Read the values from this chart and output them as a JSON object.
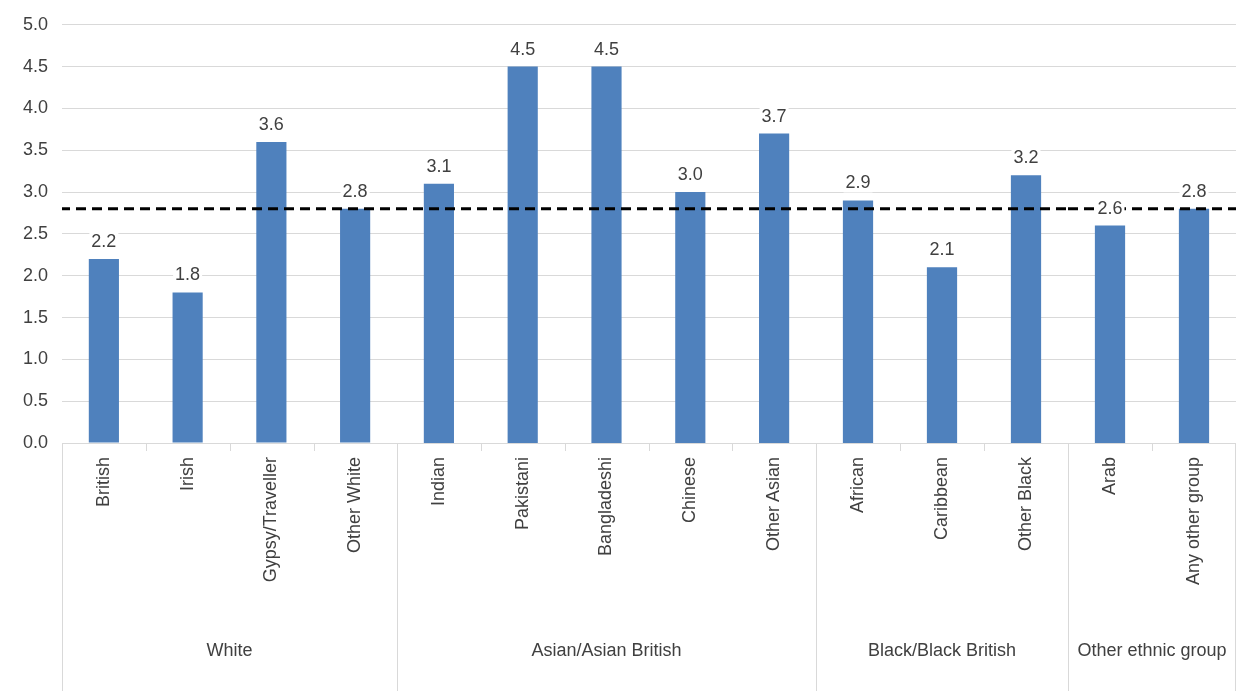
{
  "chart_data": [
    {
      "type": "bar",
      "xlabel": "White",
      "categories": [
        "British",
        "Irish",
        "Gypsy/Traveller",
        "Other White"
      ],
      "values": [
        2.2,
        1.8,
        3.6,
        2.8
      ],
      "value_labels": [
        "2.2",
        "1.8",
        "3.6",
        "2.8"
      ],
      "color": "#4f81bd",
      "ylim": [
        0,
        5
      ],
      "yticks": [
        {
          "value": 0,
          "label": "0.0"
        },
        {
          "value": 0.5,
          "label": "0.5"
        },
        {
          "value": 1,
          "label": "1.0"
        },
        {
          "value": 1.5,
          "label": "1.5"
        },
        {
          "value": 2,
          "label": "2.0"
        },
        {
          "value": 2.5,
          "label": "2.5"
        },
        {
          "value": 3,
          "label": "3.0"
        },
        {
          "value": 3.5,
          "label": "3.5"
        },
        {
          "value": 4,
          "label": "4.0"
        },
        {
          "value": 4.5,
          "label": "4.5"
        },
        {
          "value": 5,
          "label": "5.0"
        }
      ],
      "grid": "y",
      "ref_lines": [
        {
          "axis": "y",
          "value": 2.8,
          "color": "#000000",
          "line_style": "dashed"
        }
      ]
    },
    {
      "type": "bar",
      "xlabel": "Asian/Asian British",
      "categories": [
        "Indian",
        "Pakistani",
        "Bangladeshi",
        "Chinese",
        "Other Asian"
      ],
      "values": [
        3.1,
        4.5,
        4.5,
        3.0,
        3.7
      ],
      "value_labels": [
        "3.1",
        "4.5",
        "4.5",
        "3.0",
        "3.7"
      ],
      "color": "#4f81bd",
      "ylim": [
        0,
        5
      ],
      "yticks": [
        0,
        0.5,
        1,
        1.5,
        2,
        2.5,
        3,
        3.5,
        4,
        4.5,
        5
      ],
      "tick_labels": "x",
      "grid": "y",
      "ref_lines": [
        {
          "axis": "y",
          "value": 2.8,
          "color": "#000000",
          "line_style": "dashed"
        }
      ]
    },
    {
      "type": "bar",
      "xlabel": "Black/Black British",
      "categories": [
        "African",
        "Caribbean",
        "Other Black"
      ],
      "values": [
        2.9,
        2.1,
        3.2
      ],
      "value_labels": [
        "2.9",
        "2.1",
        "3.2"
      ],
      "color": "#4f81bd",
      "ylim": [
        0,
        5
      ],
      "yticks": [
        0,
        0.5,
        1,
        1.5,
        2,
        2.5,
        3,
        3.5,
        4,
        4.5,
        5
      ],
      "tick_labels": "x",
      "grid": "y",
      "ref_lines": [
        {
          "axis": "y",
          "value": 2.8,
          "color": "#000000",
          "line_style": "dashed"
        }
      ]
    },
    {
      "type": "bar",
      "xlabel": "Other ethnic group",
      "categories": [
        "Arab",
        "Any other group"
      ],
      "values": [
        2.6,
        2.8
      ],
      "value_labels": [
        "2.6",
        "2.8"
      ],
      "color": "#4f81bd",
      "ylim": [
        0,
        5
      ],
      "yticks": [
        0,
        0.5,
        1,
        1.5,
        2,
        2.5,
        3,
        3.5,
        4,
        4.5,
        5
      ],
      "tick_labels": "x",
      "grid": "y",
      "ref_lines": [
        {
          "axis": "y",
          "value": 2.8,
          "color": "#000000",
          "line_style": "dashed"
        }
      ]
    }
  ]
}
